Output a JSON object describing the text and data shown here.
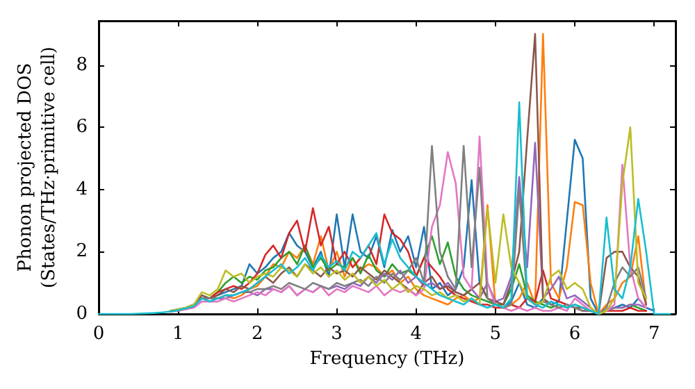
{
  "chart_data": {
    "type": "line",
    "xlabel": "Frequency (THz)",
    "ylabel": "Phonon projected DOS\n(States/THz·primitive cell)",
    "xlim": [
      0,
      7.27
    ],
    "xticks": [
      0,
      1,
      2,
      3,
      4,
      5,
      6,
      7
    ],
    "ylim": [
      0,
      9.42
    ],
    "yticks": [
      0,
      2,
      4,
      6,
      8
    ],
    "grid": false,
    "marker": "none",
    "line_style": "solid",
    "x": [
      0,
      0.1,
      0.2,
      0.3,
      0.4,
      0.5,
      0.6,
      0.7,
      0.8,
      0.9,
      1,
      1.1,
      1.2,
      1.3,
      1.4,
      1.5,
      1.6,
      1.7,
      1.8,
      1.9,
      2,
      2.1,
      2.2,
      2.3,
      2.4,
      2.5,
      2.6,
      2.7,
      2.8,
      2.9,
      3,
      3.1,
      3.2,
      3.3,
      3.4,
      3.5,
      3.6,
      3.7,
      3.8,
      3.9,
      4,
      4.1,
      4.2,
      4.3,
      4.4,
      4.5,
      4.6,
      4.7,
      4.8,
      4.9,
      5,
      5.1,
      5.2,
      5.3,
      5.4,
      5.5,
      5.6,
      5.7,
      5.8,
      5.9,
      6,
      6.1,
      6.2,
      6.3,
      6.4,
      6.5,
      6.6,
      6.7,
      6.8,
      6.9,
      7,
      7.1,
      7.2
    ],
    "series": [
      {
        "color": "#1f77b4",
        "values": [
          null,
          null,
          null,
          null,
          null,
          null,
          null,
          null,
          null,
          0.1,
          0.15,
          0.2,
          0.3,
          0.5,
          0.5,
          0.6,
          0.7,
          0.8,
          0.9,
          1.6,
          1.3,
          1.5,
          1.8,
          2.0,
          2.6,
          2.2,
          2.0,
          1.5,
          2.0,
          1.2,
          3.2,
          1.5,
          3.2,
          2.0,
          1.8,
          2.5,
          1.5,
          2.7,
          2.0,
          2.5,
          1.5,
          2.8,
          0.8,
          1.0,
          0.6,
          0.8,
          1.5,
          4.3,
          1.0,
          0.5,
          0.3,
          0.2,
          0.4,
          1.0,
          0.3,
          0.2,
          0.5,
          0.3,
          0.4,
          3.0,
          5.6,
          5.0,
          0.5,
          0,
          0.1,
          0.2,
          0.3,
          0.2,
          0.5,
          0.2,
          0.1,
          null,
          null
        ]
      },
      {
        "color": "#ff7f0e",
        "values": [
          null,
          null,
          null,
          null,
          null,
          null,
          null,
          null,
          null,
          null,
          null,
          null,
          null,
          null,
          null,
          0.5,
          0.6,
          0.5,
          0.6,
          0.8,
          0.9,
          1.2,
          1.6,
          1.5,
          2.0,
          1.8,
          2.2,
          1.6,
          2.5,
          1.4,
          2.0,
          1.2,
          1.8,
          1.4,
          1.6,
          1.5,
          1.2,
          1.4,
          1.0,
          1.2,
          0.8,
          0.6,
          0.5,
          0.4,
          0.3,
          0.5,
          0.6,
          0.4,
          0.5,
          3.5,
          0.3,
          0.2,
          0.3,
          0.5,
          1.0,
          0.3,
          9.0,
          1.0,
          0.5,
          1.5,
          3.6,
          3.5,
          1.0,
          0,
          0.3,
          0.5,
          1.0,
          1.2,
          2.5,
          0.3,
          null,
          null,
          null
        ]
      },
      {
        "color": "#2ca02c",
        "values": [
          null,
          null,
          null,
          null,
          null,
          null,
          null,
          null,
          null,
          0.1,
          0.14,
          0.2,
          0.3,
          0.6,
          0.5,
          0.7,
          1.0,
          1.2,
          1.0,
          1.2,
          1.1,
          1.4,
          1.5,
          1.8,
          2.0,
          1.6,
          2.2,
          1.5,
          1.8,
          1.4,
          1.6,
          1.5,
          1.8,
          1.3,
          1.9,
          1.4,
          1.2,
          1.6,
          1.3,
          1.4,
          1.2,
          1.8,
          2.5,
          1.6,
          2.3,
          1.2,
          0.8,
          0.6,
          0.5,
          0.4,
          0.3,
          0.3,
          0.8,
          1.6,
          0.6,
          0.4,
          0.3,
          0.2,
          0.3,
          0.2,
          0.3,
          0.2,
          0.1,
          0,
          0.1,
          0.2,
          0.2,
          0.3,
          0.2,
          0.1,
          null,
          null,
          null
        ]
      },
      {
        "color": "#d62728",
        "values": [
          null,
          null,
          null,
          null,
          null,
          null,
          null,
          null,
          null,
          null,
          null,
          null,
          null,
          0.5,
          0.5,
          0.7,
          0.8,
          0.9,
          0.8,
          1.0,
          1.3,
          1.9,
          2.2,
          1.8,
          2.6,
          3.0,
          2.0,
          3.4,
          2.2,
          2.8,
          1.6,
          2.0,
          1.5,
          1.8,
          2.2,
          1.6,
          3.2,
          2.6,
          2.4,
          2.0,
          1.2,
          1.8,
          1.5,
          1.2,
          0.8,
          0.6,
          0.5,
          0.4,
          0.3,
          0.3,
          0.2,
          0.2,
          0.3,
          0.2,
          0.5,
          0.4,
          1.4,
          0.5,
          0.4,
          0.3,
          0.2,
          0.1,
          0.1,
          0,
          0.1,
          0.1,
          0.1,
          0.2,
          0.1,
          0.1,
          null,
          null,
          null
        ]
      },
      {
        "color": "#9467bd",
        "values": [
          null,
          null,
          null,
          null,
          null,
          null,
          null,
          null,
          null,
          0.08,
          0.12,
          0.18,
          0.25,
          0.5,
          0.5,
          0.5,
          0.5,
          0.6,
          0.7,
          0.7,
          0.6,
          0.8,
          0.8,
          0.7,
          0.9,
          0.6,
          0.8,
          0.7,
          0.9,
          0.8,
          0.9,
          0.8,
          1.0,
          0.9,
          1.2,
          1.0,
          1.3,
          1.1,
          1.4,
          1.0,
          1.2,
          0.9,
          1.0,
          0.8,
          1.0,
          0.7,
          0.6,
          0.8,
          0.5,
          1.0,
          0.4,
          0.5,
          1.2,
          4.4,
          1.5,
          5.5,
          0.5,
          0.8,
          1.2,
          0.5,
          0.6,
          0.4,
          0.2,
          0,
          0.1,
          0.2,
          0.2,
          0.3,
          0.3,
          0.2,
          null,
          null,
          null
        ]
      },
      {
        "color": "#8c564b",
        "values": [
          null,
          null,
          null,
          null,
          null,
          null,
          null,
          null,
          null,
          0.09,
          0.13,
          0.2,
          0.3,
          0.6,
          0.5,
          0.6,
          0.8,
          0.7,
          0.9,
          0.8,
          1.0,
          1.2,
          1.0,
          1.3,
          1.5,
          1.2,
          1.6,
          1.4,
          1.2,
          1.5,
          1.3,
          1.4,
          1.2,
          1.5,
          1.3,
          1.1,
          1.4,
          1.2,
          1.0,
          0.8,
          0.6,
          1.0,
          1.2,
          0.8,
          0.9,
          0.7,
          0.6,
          0.8,
          1.0,
          0.5,
          0.4,
          0.3,
          1.0,
          2.0,
          5.6,
          9.0,
          0.5,
          0.3,
          0.2,
          0.3,
          0.2,
          0.2,
          0.1,
          0,
          1.8,
          2.0,
          2.0,
          1.5,
          1.2,
          0.3,
          null,
          null,
          null
        ]
      },
      {
        "color": "#e377c2",
        "values": [
          null,
          null,
          null,
          null,
          null,
          null,
          null,
          null,
          null,
          0.07,
          0.1,
          0.15,
          0.2,
          0.4,
          0.4,
          0.4,
          0.5,
          0.4,
          0.5,
          0.6,
          0.7,
          0.6,
          0.8,
          0.7,
          0.9,
          0.6,
          0.8,
          0.7,
          0.9,
          0.6,
          0.8,
          0.7,
          0.9,
          0.8,
          0.7,
          0.9,
          0.6,
          0.8,
          0.7,
          0.8,
          0.6,
          0.8,
          2.8,
          3.5,
          5.2,
          4.2,
          1.2,
          0.8,
          5.7,
          1.0,
          0.3,
          0.2,
          0.1,
          0.2,
          0.1,
          0.2,
          0.1,
          0.1,
          0.2,
          0.1,
          0.5,
          0.3,
          0.1,
          0,
          0.1,
          0.3,
          4.8,
          1.5,
          0.5,
          0.2,
          null,
          null,
          null
        ]
      },
      {
        "color": "#7f7f7f",
        "values": [
          null,
          null,
          null,
          null,
          null,
          null,
          null,
          null,
          null,
          0.08,
          0.12,
          0.18,
          0.25,
          0.5,
          0.5,
          0.5,
          0.6,
          0.6,
          0.7,
          0.7,
          0.8,
          0.8,
          0.9,
          0.8,
          1.0,
          0.9,
          0.8,
          1.0,
          0.9,
          0.8,
          1.0,
          0.9,
          1.0,
          1.1,
          0.9,
          1.2,
          1.0,
          1.3,
          1.1,
          1.4,
          1.8,
          1.0,
          5.4,
          2.0,
          1.2,
          0.8,
          5.4,
          1.5,
          4.7,
          0.5,
          0.3,
          0.2,
          0.3,
          4.0,
          0.5,
          0.3,
          0.4,
          0.3,
          0.2,
          0.3,
          0.2,
          0.1,
          0.1,
          0,
          0.2,
          1.0,
          1.5,
          1.2,
          1.5,
          0.5,
          null,
          null,
          null
        ]
      },
      {
        "color": "#bcbd22",
        "values": [
          null,
          null,
          null,
          null,
          null,
          null,
          null,
          null,
          null,
          0.1,
          0.15,
          0.2,
          0.3,
          0.7,
          0.6,
          0.8,
          1.4,
          1.2,
          1.3,
          1.0,
          1.2,
          1.3,
          1.2,
          1.5,
          1.4,
          1.2,
          1.6,
          1.3,
          1.5,
          1.2,
          1.4,
          1.1,
          1.3,
          1.0,
          1.2,
          0.9,
          1.1,
          0.8,
          1.0,
          0.7,
          0.9,
          0.8,
          0.6,
          0.7,
          0.5,
          0.6,
          0.4,
          0.5,
          0.3,
          3.4,
          1.0,
          3.2,
          1.5,
          1.0,
          0.5,
          0.3,
          0.4,
          1.2,
          1.4,
          0.8,
          1.0,
          0.8,
          0.2,
          0,
          0.1,
          0.5,
          4.2,
          6.0,
          1.0,
          0.5,
          null,
          null,
          null
        ]
      },
      {
        "color": "#17becf",
        "values": [
          0,
          0,
          0,
          0,
          0,
          0.01,
          0.02,
          0.03,
          0.05,
          0.08,
          0.12,
          0.18,
          0.25,
          0.5,
          0.4,
          0.5,
          0.6,
          0.6,
          0.7,
          0.8,
          1.0,
          1.2,
          1.4,
          1.6,
          1.3,
          1.5,
          1.8,
          1.4,
          1.9,
          1.5,
          1.7,
          1.4,
          2.0,
          1.8,
          2.2,
          2.6,
          1.6,
          2.4,
          1.8,
          1.5,
          1.2,
          1.0,
          0.8,
          0.6,
          0.5,
          0.4,
          0.3,
          0.5,
          0.3,
          0.2,
          0.3,
          0.2,
          0.5,
          6.8,
          0.5,
          0.3,
          0.2,
          0.4,
          0.3,
          0.2,
          0.3,
          0.2,
          0.1,
          0,
          3.1,
          0.8,
          0.5,
          1.5,
          3.7,
          2.0,
          0,
          0,
          0
        ]
      }
    ]
  }
}
